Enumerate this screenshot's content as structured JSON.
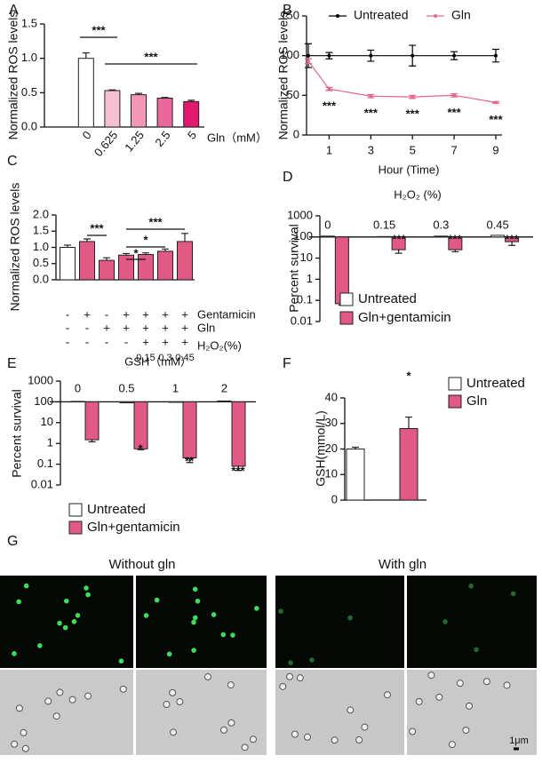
{
  "chart_data": [
    {
      "panel": "A",
      "type": "bar",
      "ylabel": "Normalized ROS levels",
      "xlabel": "Gln（mM）",
      "categories": [
        "0",
        "0.625",
        "1.25",
        "2.5",
        "5"
      ],
      "values": [
        1.0,
        0.53,
        0.47,
        0.42,
        0.37
      ],
      "errors": [
        0.08,
        0.01,
        0.02,
        0.01,
        0.02
      ],
      "colors": [
        "#ffffff",
        "#f7bfd2",
        "#f297b6",
        "#e9679a",
        "#e3196f"
      ],
      "ylim": [
        0,
        1.5
      ],
      "yticks": [
        {
          "value": 0,
          "label": "0.0"
        },
        0.5,
        {
          "value": 1,
          "label": "1.0"
        },
        1.5
      ],
      "annotations": [
        "***",
        "***"
      ]
    },
    {
      "panel": "B",
      "type": "line",
      "ylabel": "Normalized ROS levels",
      "xlabel": "Hour (Time)",
      "x": [
        0,
        1,
        3,
        5,
        7,
        9
      ],
      "series": [
        {
          "name": "Untreated",
          "color": "#000000",
          "values": [
            100,
            100,
            100,
            100,
            100,
            100
          ],
          "errors": [
            15,
            4,
            7,
            13,
            5,
            8
          ]
        },
        {
          "name": "Gln",
          "color": "#e0698e",
          "values": [
            93,
            58,
            49,
            48,
            50,
            41
          ],
          "errors": [
            3,
            2,
            2,
            2,
            2,
            1
          ]
        }
      ],
      "xlim": [
        0,
        9.3
      ],
      "xticks": [
        1,
        3,
        5,
        7,
        9
      ],
      "ylim": [
        0,
        150
      ],
      "yticks": [
        0,
        50,
        100,
        150
      ],
      "legend": "top",
      "annotations": [
        "***",
        "***",
        "***",
        "***",
        "***"
      ]
    },
    {
      "panel": "C",
      "type": "bar",
      "ylabel": "Normalized ROS levels",
      "values": [
        1.0,
        1.18,
        0.6,
        0.76,
        0.78,
        0.88,
        1.18
      ],
      "errors": [
        0.07,
        0.08,
        0.08,
        0.05,
        0.05,
        0.07,
        0.25
      ],
      "colors": [
        "#ffffff",
        "#e05a85",
        "#e05a85",
        "#e05a85",
        "#e05a85",
        "#e05a85",
        "#e05a85"
      ],
      "ylim": [
        0,
        2
      ],
      "yticks": [
        {
          "value": 0,
          "label": "0.0"
        },
        0.5,
        {
          "value": 1,
          "label": "1.0"
        },
        1.5,
        {
          "value": 2,
          "label": "2.0"
        }
      ],
      "table": {
        "rows": [
          {
            "label": "Gentamicin",
            "cells": [
              "-",
              "+",
              "-",
              "+",
              "+",
              "+",
              "+"
            ]
          },
          {
            "label": "Gln",
            "cells": [
              "-",
              "-",
              "+",
              "+",
              "+",
              "+",
              "+"
            ]
          },
          {
            "label": "H₂O₂(%)",
            "cells": [
              "-",
              "-",
              "-",
              "-",
              "+",
              "+",
              "+"
            ]
          }
        ],
        "doses": [
          "0.15",
          "0.3",
          "0.45"
        ]
      },
      "annotations": [
        "***",
        "*",
        "*",
        "***"
      ]
    },
    {
      "panel": "D",
      "type": "bar",
      "log": true,
      "baseline": 100,
      "ylabel": "Percent survival",
      "subtitle": "H₂O₂ (%)",
      "categories": [
        "0",
        "0.15",
        "0.3",
        "0.45"
      ],
      "series": [
        {
          "name": "Untreated",
          "color": "#ffffff",
          "values": [
            110,
            105,
            110,
            120
          ]
        },
        {
          "name": "Gln+gentamicin",
          "color": "#e05a85",
          "values": [
            0.07,
            25,
            25,
            60
          ],
          "errors": [
            0.01,
            8,
            5,
            20
          ]
        }
      ],
      "ylim": [
        0.01,
        1000
      ],
      "yticks": [
        0.01,
        0.1,
        1,
        10,
        100,
        1000
      ],
      "annotations": [
        "***",
        "***",
        "***"
      ]
    },
    {
      "panel": "E",
      "type": "bar",
      "log": true,
      "baseline": 100,
      "ylabel": "Percent survival",
      "subtitle": "GSH（mM）",
      "categories": [
        "0",
        "0.5",
        "1",
        "2"
      ],
      "series": [
        {
          "name": "Untreated",
          "color": "#ffffff",
          "values": [
            105,
            90,
            95,
            110
          ]
        },
        {
          "name": "Gln+gentamicin",
          "color": "#e05a85",
          "values": [
            1.5,
            0.55,
            0.2,
            0.08
          ],
          "errors": [
            0.3,
            0.05,
            0.08,
            0.03
          ]
        }
      ],
      "ylim": [
        0.01,
        1000
      ],
      "yticks": [
        0.01,
        0.1,
        1,
        10,
        100,
        1000
      ],
      "annotations": [
        "*",
        "**",
        "***"
      ]
    },
    {
      "panel": "F",
      "type": "bar",
      "ylabel": "GSH(mmol/L)",
      "series": [
        {
          "name": "Untreated",
          "color": "#ffffff",
          "values": [
            20
          ],
          "errors": [
            0.7
          ]
        },
        {
          "name": "Gln",
          "color": "#e05a85",
          "values": [
            28
          ],
          "errors": [
            4.5
          ]
        }
      ],
      "ylim": [
        0,
        40
      ],
      "yticks": [
        0,
        10,
        20,
        30,
        40
      ],
      "annotations": [
        "*"
      ]
    }
  ],
  "panel_g": {
    "label": "G",
    "titles": [
      "Without gln",
      "With gln"
    ],
    "scale_bar": "1μm"
  }
}
